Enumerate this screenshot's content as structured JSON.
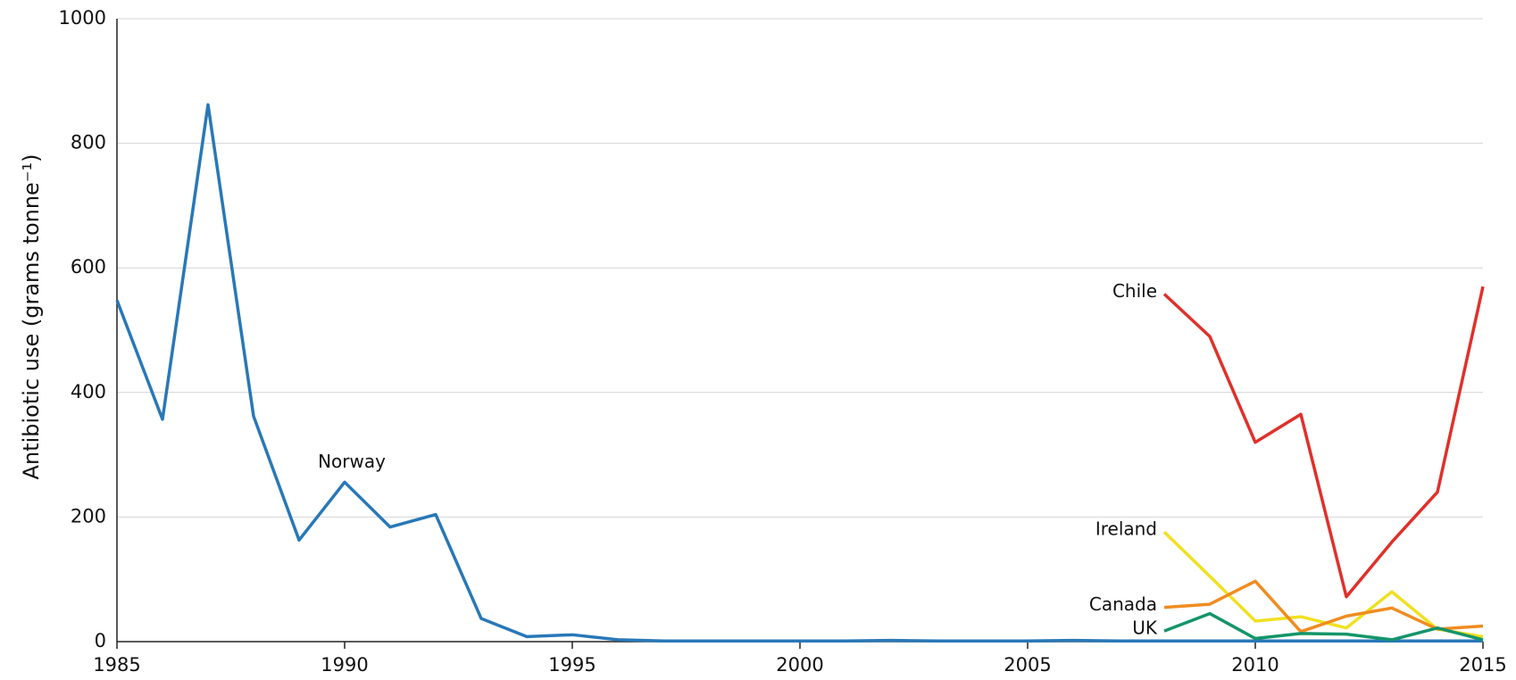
{
  "chart_data": {
    "type": "line",
    "y_label": "Antibiotic use (grams tonne⁻¹)",
    "xlim": [
      1985,
      2015
    ],
    "xticks": [
      1985,
      1990,
      1995,
      2000,
      2005,
      2010,
      2015
    ],
    "ylim": [
      0,
      1000
    ],
    "yticks": [
      0,
      200,
      400,
      600,
      800,
      1000
    ],
    "grid": true,
    "series": [
      {
        "name": "Norway",
        "color": "#2878b8",
        "x": [
          1985,
          1986,
          1987,
          1988,
          1989,
          1990,
          1991,
          1992,
          1993,
          1994,
          1995,
          1996,
          1997,
          1998,
          1999,
          2000,
          2001,
          2002,
          2003,
          2004,
          2005,
          2006,
          2007,
          2008,
          2009,
          2010,
          2011,
          2012,
          2013,
          2014,
          2015
        ],
        "values": [
          548,
          357,
          862,
          362,
          163,
          256,
          184,
          204,
          37,
          8,
          11,
          3,
          1,
          1,
          1,
          1,
          1,
          2,
          1,
          1,
          1,
          2,
          1,
          1,
          1,
          1,
          1,
          1,
          1,
          1,
          1
        ]
      },
      {
        "name": "Chile",
        "color": "#e0302a",
        "x": [
          2008,
          2009,
          2010,
          2011,
          2012,
          2013,
          2014,
          2015
        ],
        "values": [
          558,
          490,
          320,
          365,
          72,
          160,
          240,
          570
        ]
      },
      {
        "name": "Ireland",
        "color": "#f0e020",
        "x": [
          2008,
          2009,
          2010,
          2011,
          2012,
          2013,
          2014,
          2015
        ],
        "values": [
          176,
          105,
          33,
          40,
          22,
          80,
          20,
          8
        ]
      },
      {
        "name": "Canada",
        "color": "#f08c20",
        "x": [
          2008,
          2009,
          2010,
          2011,
          2012,
          2013,
          2014,
          2015
        ],
        "values": [
          55,
          60,
          97,
          16,
          41,
          54,
          20,
          25
        ]
      },
      {
        "name": "UK",
        "color": "#14956a",
        "x": [
          2008,
          2009,
          2010,
          2011,
          2012,
          2013,
          2014,
          2015
        ],
        "values": [
          17,
          45,
          5,
          13,
          12,
          3,
          22,
          3
        ]
      }
    ]
  }
}
